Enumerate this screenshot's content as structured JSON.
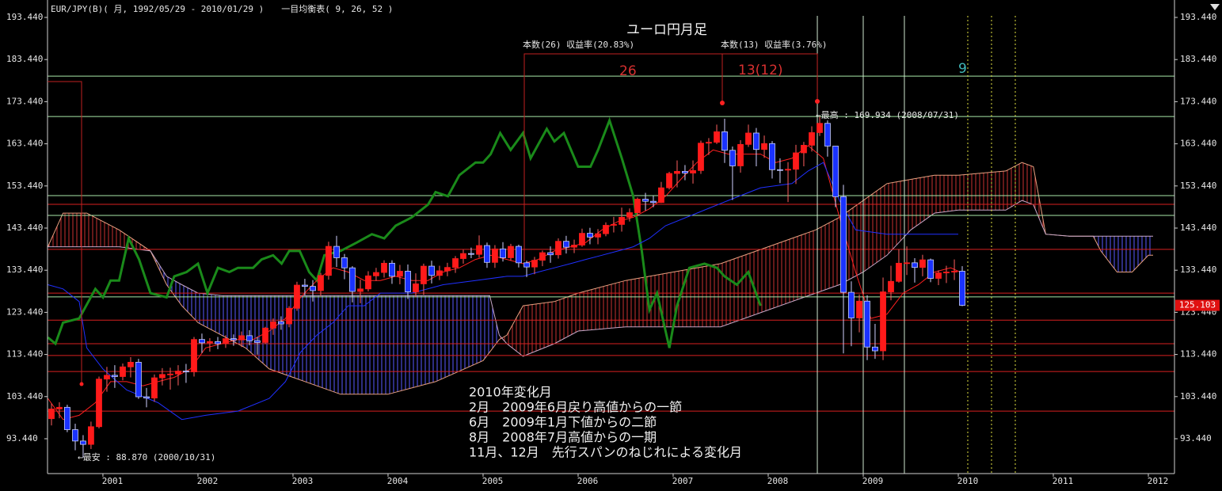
{
  "chart_data": {
    "type": "candlestick",
    "header": "EUR/JPY(B)( 月, 1992/05/29 - 2010/01/29 )　　一目均衡表( 9, 26, 52 )",
    "title": "ユーロ円月足",
    "up_color": "#ff1a1a",
    "down_color": "#1a32ff",
    "x": [
      2000.417,
      2000.5,
      2000.583,
      2000.667,
      2000.75,
      2000.833,
      2000.917,
      2001,
      2001.083,
      2001.167,
      2001.25,
      2001.333,
      2001.417,
      2001.5,
      2001.583,
      2001.667,
      2001.75,
      2001.833,
      2001.917,
      2002,
      2002.083,
      2002.167,
      2002.25,
      2002.333,
      2002.417,
      2002.5,
      2002.583,
      2002.667,
      2002.75,
      2002.833,
      2002.917,
      2003,
      2003.083,
      2003.167,
      2003.25,
      2003.333,
      2003.417,
      2003.5,
      2003.583,
      2003.667,
      2003.75,
      2003.833,
      2003.917,
      2004,
      2004.083,
      2004.167,
      2004.25,
      2004.333,
      2004.417,
      2004.5,
      2004.583,
      2004.667,
      2004.75,
      2004.833,
      2004.917,
      2005,
      2005.083,
      2005.167,
      2005.25,
      2005.333,
      2005.417,
      2005.5,
      2005.583,
      2005.667,
      2005.75,
      2005.833,
      2005.917,
      2006,
      2006.083,
      2006.167,
      2006.25,
      2006.333,
      2006.417,
      2006.5,
      2006.583,
      2006.667,
      2006.75,
      2006.833,
      2006.917,
      2007,
      2007.083,
      2007.167,
      2007.25,
      2007.333,
      2007.417,
      2007.5,
      2007.583,
      2007.667,
      2007.75,
      2007.833,
      2007.917,
      2008,
      2008.083,
      2008.167,
      2008.25,
      2008.333,
      2008.417,
      2008.5,
      2008.583,
      2008.667,
      2008.75,
      2008.833,
      2008.917,
      2009,
      2009.083,
      2009.167,
      2009.25,
      2009.333,
      2009.417,
      2009.5,
      2009.583,
      2009.667,
      2009.75,
      2009.833,
      2009.917,
      2010
    ],
    "open": [
      98.2,
      100.5,
      100.9,
      95.6,
      92.9,
      92.1,
      96.3,
      107.6,
      108.5,
      108.2,
      110.5,
      111.6,
      103.4,
      103.1,
      107.9,
      108.7,
      108.8,
      109.5,
      109.3,
      117.0,
      116.2,
      116.5,
      116.0,
      117.2,
      116.9,
      117.9,
      116.7,
      116.3,
      119.7,
      121.2,
      120.7,
      124.4,
      129.9,
      129.6,
      128.6,
      132.2,
      139.1,
      136.4,
      134.0,
      128.4,
      129.0,
      132.1,
      132.9,
      135.1,
      132.0,
      133.2,
      128.3,
      130.2,
      134.4,
      132.2,
      133.3,
      134.1,
      136.2,
      137.4,
      137.2,
      139.3,
      135.3,
      138.5,
      136.4,
      139.1,
      135.2,
      134.2,
      135.8,
      137.6,
      137.1,
      140.3,
      138.9,
      139.4,
      142.2,
      141.3,
      142.1,
      144.1,
      144.3,
      146.0,
      147.1,
      150.3,
      149.8,
      149.5,
      153.0,
      156.4,
      156.9,
      156.5,
      157.1,
      163.6,
      163.8,
      166.3,
      161.9,
      158.2,
      163.3,
      166.0,
      162.1,
      163.5,
      157.3,
      157.2,
      157.4,
      161.3,
      163.1,
      166.1,
      168.3,
      162.9,
      150.9,
      128.2,
      122.1,
      126.1,
      115.2,
      114.3,
      128.3,
      130.8,
      135.1,
      135.2,
      134.1,
      135.9,
      131.5,
      132.8,
      133.0,
      133.2
    ],
    "high": [
      101.8,
      102.1,
      101.5,
      97.0,
      94.3,
      97.5,
      108.2,
      110.5,
      110.9,
      111.3,
      112.8,
      112.4,
      105.5,
      108.7,
      110.2,
      110.3,
      110.9,
      111.2,
      117.6,
      118.4,
      117.3,
      117.6,
      118.0,
      118.2,
      118.9,
      119.2,
      117.6,
      120.0,
      122.0,
      122.5,
      124.9,
      130.7,
      131.4,
      131.1,
      132.8,
      140.2,
      141.6,
      137.3,
      134.4,
      131.2,
      133.2,
      134.0,
      135.8,
      135.8,
      134.7,
      134.8,
      132.7,
      135.0,
      135.7,
      134.5,
      135.2,
      136.8,
      138.3,
      138.8,
      141.7,
      140.0,
      139.4,
      140.1,
      139.7,
      139.5,
      135.7,
      136.6,
      138.1,
      139.1,
      141.0,
      141.6,
      140.7,
      143.3,
      143.5,
      143.2,
      144.8,
      146.1,
      148.3,
      148.1,
      150.7,
      151.8,
      151.1,
      154.4,
      156.8,
      159.5,
      158.4,
      159.5,
      164.2,
      164.8,
      168.0,
      169.4,
      162.8,
      164.3,
      168.0,
      167.2,
      165.4,
      164.1,
      160.0,
      159.1,
      163.2,
      163.9,
      167.6,
      169.9,
      169.0,
      161.8,
      153.7,
      130.8,
      127.7,
      127.5,
      120.7,
      131.7,
      134.5,
      138.4,
      139.1,
      136.3,
      137.1,
      136.2,
      133.4,
      134.5,
      136.0,
      134.4
    ],
    "low": [
      96.6,
      98.3,
      95.0,
      90.7,
      88.9,
      91.0,
      95.9,
      104.6,
      105.5,
      107.3,
      108.0,
      102.9,
      100.9,
      102.2,
      106.1,
      105.1,
      106.1,
      106.7,
      108.2,
      113.8,
      114.1,
      114.7,
      115.0,
      115.5,
      115.2,
      115.6,
      113.4,
      115.9,
      118.1,
      119.3,
      119.9,
      123.8,
      127.4,
      126.0,
      127.3,
      131.2,
      134.2,
      131.3,
      125.8,
      125.6,
      128.4,
      130.9,
      131.7,
      130.2,
      130.1,
      126.6,
      127.1,
      127.6,
      130.3,
      131.1,
      132.0,
      132.8,
      135.0,
      136.3,
      136.4,
      134.0,
      134.0,
      135.5,
      135.7,
      134.1,
      131.8,
      132.5,
      134.4,
      135.2,
      136.2,
      137.4,
      137.5,
      139.0,
      139.6,
      139.6,
      141.5,
      142.4,
      142.6,
      145.0,
      146.3,
      147.6,
      148.4,
      149.4,
      152.6,
      153.1,
      154.8,
      154.0,
      156.3,
      160.8,
      163.4,
      158.9,
      150.1,
      156.6,
      162.7,
      158.1,
      160.1,
      155.2,
      154.1,
      149.6,
      153.9,
      158.1,
      161.6,
      165.3,
      160.4,
      148.4,
      113.7,
      115.4,
      118.7,
      112.1,
      112.4,
      112.1,
      126.3,
      130.5,
      132.3,
      130.5,
      132.0,
      130.6,
      129.9,
      130.4,
      131.1,
      124.9
    ],
    "close": [
      100.5,
      100.9,
      95.6,
      92.9,
      92.1,
      96.3,
      107.6,
      108.5,
      108.2,
      110.5,
      111.6,
      103.4,
      103.1,
      107.9,
      108.7,
      108.8,
      109.5,
      109.3,
      117.0,
      116.2,
      116.5,
      116.0,
      117.2,
      116.9,
      117.9,
      116.7,
      116.3,
      119.7,
      121.2,
      120.7,
      124.4,
      129.9,
      129.6,
      128.6,
      132.2,
      139.1,
      136.4,
      134.0,
      128.4,
      129.0,
      132.1,
      132.9,
      135.1,
      132.0,
      133.2,
      128.3,
      130.2,
      134.4,
      132.2,
      133.3,
      134.1,
      136.2,
      137.4,
      137.2,
      139.3,
      135.3,
      138.5,
      136.4,
      139.1,
      135.2,
      134.2,
      135.8,
      137.6,
      137.1,
      140.3,
      138.9,
      139.4,
      142.2,
      141.3,
      142.1,
      144.1,
      144.3,
      146.0,
      147.1,
      150.3,
      149.8,
      149.5,
      153.0,
      156.4,
      156.9,
      156.5,
      157.1,
      163.6,
      163.8,
      166.3,
      161.9,
      158.2,
      163.3,
      166.0,
      162.1,
      163.5,
      157.3,
      157.2,
      157.4,
      161.3,
      163.1,
      166.1,
      168.3,
      162.9,
      150.9,
      128.2,
      122.1,
      126.1,
      115.2,
      114.3,
      128.3,
      130.8,
      135.1,
      135.2,
      134.1,
      135.9,
      131.5,
      132.8,
      133.0,
      133.2,
      125.103
    ],
    "last_price": 125.103,
    "xlim": [
      2000.417,
      2012.275
    ],
    "ylim": [
      85.17,
      197.575
    ],
    "xticks": [
      2001,
      2002,
      2003,
      2004,
      2005,
      2006,
      2007,
      2008,
      2009,
      2010,
      2011,
      2012
    ],
    "yticks": [
      {
        "value": 93.44,
        "label": "93.440"
      },
      {
        "value": 103.44,
        "label": "103.440"
      },
      {
        "value": 113.44,
        "label": "113.440"
      },
      {
        "value": 123.44,
        "label": "123.440"
      },
      {
        "value": 133.44,
        "label": "133.440"
      },
      {
        "value": 143.44,
        "label": "143.440"
      },
      {
        "value": 153.44,
        "label": "153.440"
      },
      {
        "value": 163.44,
        "label": "163.440"
      },
      {
        "value": 173.44,
        "label": "173.440"
      },
      {
        "value": 183.44,
        "label": "183.440"
      },
      {
        "value": 193.44,
        "label": "193.440"
      }
    ],
    "cloud": {
      "up_color": "#c83232",
      "down_color": "#5a5aff",
      "span_a_color": "#e8a080",
      "span_b_color": "#c8a8c8",
      "x": [
        2000.42,
        2000.58,
        2000.83,
        2001.0,
        2001.17,
        2001.5,
        2001.67,
        2001.83,
        2002.0,
        2002.25,
        2002.5,
        2002.75,
        2003.0,
        2003.5,
        2004.0,
        2004.5,
        2005.0,
        2005.07,
        2005.17,
        2005.25,
        2005.42,
        2005.75,
        2006.0,
        2006.5,
        2007.0,
        2007.5,
        2008.0,
        2008.5,
        2008.75,
        2009.0,
        2009.25,
        2009.5,
        2009.75,
        2010.0,
        2010.5,
        2010.67,
        2010.79,
        2010.92,
        2011.17,
        2011.42,
        2011.5,
        2011.67,
        2011.83,
        2012.0,
        2012.05
      ],
      "span_a": [
        139,
        147,
        147,
        145,
        143,
        138,
        130,
        125,
        121,
        118,
        115,
        110,
        108,
        104,
        104,
        107,
        112,
        114,
        117,
        118,
        125,
        126,
        128,
        131,
        133,
        135,
        139,
        143,
        146,
        150,
        154,
        155,
        156,
        156,
        157,
        159,
        158,
        142,
        141.5,
        141.5,
        138,
        133,
        133,
        137,
        137
      ],
      "span_b": [
        139,
        139,
        139,
        139,
        139,
        138,
        132,
        130,
        128,
        127.4,
        127.4,
        127.4,
        127.4,
        127.4,
        127.4,
        127.4,
        127.4,
        127.4,
        118,
        116,
        113,
        116,
        119,
        120,
        120,
        120,
        124,
        128,
        130,
        133,
        137,
        143,
        147,
        147.7,
        147.7,
        150,
        149,
        142,
        141.5,
        141.5,
        141.5,
        141.5,
        141.5,
        141.5,
        141.5
      ]
    },
    "lines": [
      {
        "color": "#1a8a1a",
        "width": 3,
        "x": [
          2000.42,
          2000.5,
          2000.58,
          2000.75,
          2000.92,
          2001.0,
          2001.08,
          2001.17,
          2001.27,
          2001.38,
          2001.5,
          2001.67,
          2001.75,
          2001.88,
          2002.0,
          2002.1,
          2002.21,
          2002.33,
          2002.42,
          2002.58,
          2002.67,
          2002.79,
          2002.88,
          2002.96,
          2003.07,
          2003.17,
          2003.25,
          2003.33,
          2003.5,
          2003.67,
          2003.83,
          2003.96,
          2004.08,
          2004.25,
          2004.42,
          2004.5,
          2004.63,
          2004.75,
          2004.92,
          2005.0,
          2005.08,
          2005.18,
          2005.29,
          2005.42,
          2005.5,
          2005.67,
          2005.75,
          2005.85,
          2006.0,
          2006.13,
          2006.21,
          2006.33,
          2006.46,
          2006.58,
          2006.67,
          2006.75,
          2006.83,
          2006.96,
          2007.04,
          2007.17,
          2007.33,
          2007.46,
          2007.54,
          2007.67,
          2007.79,
          2007.92
        ],
        "values": [
          117.5,
          116,
          121,
          122,
          129,
          127,
          131,
          131,
          141,
          136,
          128,
          127,
          132,
          133,
          135,
          128,
          134,
          133,
          134,
          134,
          136,
          137,
          135,
          138,
          138,
          133,
          131,
          137,
          138,
          140,
          142,
          141,
          144,
          146,
          149,
          152,
          151,
          156,
          159,
          159,
          161,
          166,
          162,
          166,
          160,
          167,
          164,
          166,
          158,
          158,
          162,
          169,
          160,
          151,
          138,
          124,
          128,
          115,
          125,
          134,
          135,
          134,
          132,
          130,
          133,
          125
        ]
      },
      {
        "color": "#ff2020",
        "width": 1,
        "x": [
          2000.42,
          2000.58,
          2000.75,
          2000.92,
          2001.08,
          2001.25,
          2001.42,
          2001.58,
          2001.75,
          2001.92,
          2002.08,
          2002.25,
          2002.42,
          2002.58,
          2002.75,
          2002.92,
          2003.08,
          2003.25,
          2003.42,
          2003.58,
          2003.75,
          2003.92,
          2004.08,
          2004.25,
          2004.42,
          2004.58,
          2004.75,
          2004.92,
          2005.08,
          2005.25,
          2005.42,
          2005.58,
          2005.75,
          2005.92,
          2006.08,
          2006.25,
          2006.42,
          2006.58,
          2006.75,
          2006.92,
          2007.08,
          2007.25,
          2007.42,
          2007.58,
          2007.75,
          2007.92,
          2008.08,
          2008.25,
          2008.42,
          2008.58,
          2008.75,
          2008.92,
          2009.08,
          2009.25,
          2009.42,
          2009.58,
          2009.75,
          2009.92,
          2010.02
        ],
        "values": [
          103,
          98,
          99,
          102,
          107,
          107,
          106,
          107,
          108,
          110,
          115,
          116,
          117,
          117,
          119,
          122,
          127,
          131,
          134,
          133,
          131,
          131,
          132,
          131,
          131,
          133,
          134,
          136,
          137,
          136,
          135,
          136,
          138,
          139,
          140,
          143,
          145,
          146,
          148,
          151,
          155,
          159,
          162,
          161,
          161,
          161,
          159,
          160,
          163,
          160,
          146,
          133,
          122,
          123,
          128,
          130,
          133,
          134,
          133
        ]
      },
      {
        "color": "#2030ff",
        "width": 1,
        "x": [
          2000.42,
          2000.58,
          2000.75,
          2000.83,
          2001.0,
          2001.25,
          2001.58,
          2001.83,
          2002.08,
          2002.42,
          2002.75,
          2002.92,
          2003.08,
          2003.25,
          2003.42,
          2003.58,
          2003.75,
          2003.92,
          2004.25,
          2004.58,
          2004.92,
          2005.25,
          2005.42,
          2005.58,
          2005.75,
          2005.92,
          2006.08,
          2006.25,
          2006.42,
          2006.58,
          2006.75,
          2006.92,
          2007.25,
          2007.58,
          2007.92,
          2008.25,
          2008.42,
          2008.58,
          2008.75,
          2008.92,
          2009.25,
          2009.58,
          2010.0
        ],
        "values": [
          130,
          129,
          126,
          115,
          110,
          105,
          102,
          98,
          99,
          100,
          103,
          107,
          114,
          118,
          121,
          125,
          125,
          128,
          128,
          130,
          131,
          132,
          132,
          133,
          134,
          135,
          136,
          137,
          138,
          139,
          141,
          144,
          147,
          150,
          153,
          154,
          157,
          159,
          150,
          143,
          142,
          142,
          142
        ]
      }
    ],
    "levels": {
      "green": {
        "color": "#a8e8a8",
        "values": [
          179.5,
          169.93,
          151.15,
          146.45,
          127.1
        ]
      },
      "red": {
        "color": "#d82020",
        "values": [
          149.08,
          138.4,
          128.0,
          121.6,
          116.0,
          113.2,
          109.4,
          100.0
        ]
      }
    },
    "vlines": {
      "color": "#d0e8d0",
      "x": [
        2008.517,
        2009.0,
        2009.433
      ]
    },
    "cycle_lines": {
      "color": "#e0e040",
      "x": [
        2010.1,
        2010.35,
        2010.6
      ]
    },
    "annotations": {
      "high_note": "←最高 : 169.934 (2008/07/31)",
      "low_note": "←最安 : 88.870 (2000/10/31)",
      "count_26": "本数(26) 収益率(20.83%)",
      "count_13": "本数(13) 収益率(3.76%)",
      "count_26_big": "26",
      "count_13_big": "13(12)",
      "count_9": "9",
      "notes": [
        "2010年変化月",
        "2月　2009年6月戻り高値からの一節",
        "6月　2009年1月下値からの二節",
        "8月　2008年7月高値からの一期",
        "11月、12月　先行スパンのねじれによる変化月"
      ]
    }
  }
}
